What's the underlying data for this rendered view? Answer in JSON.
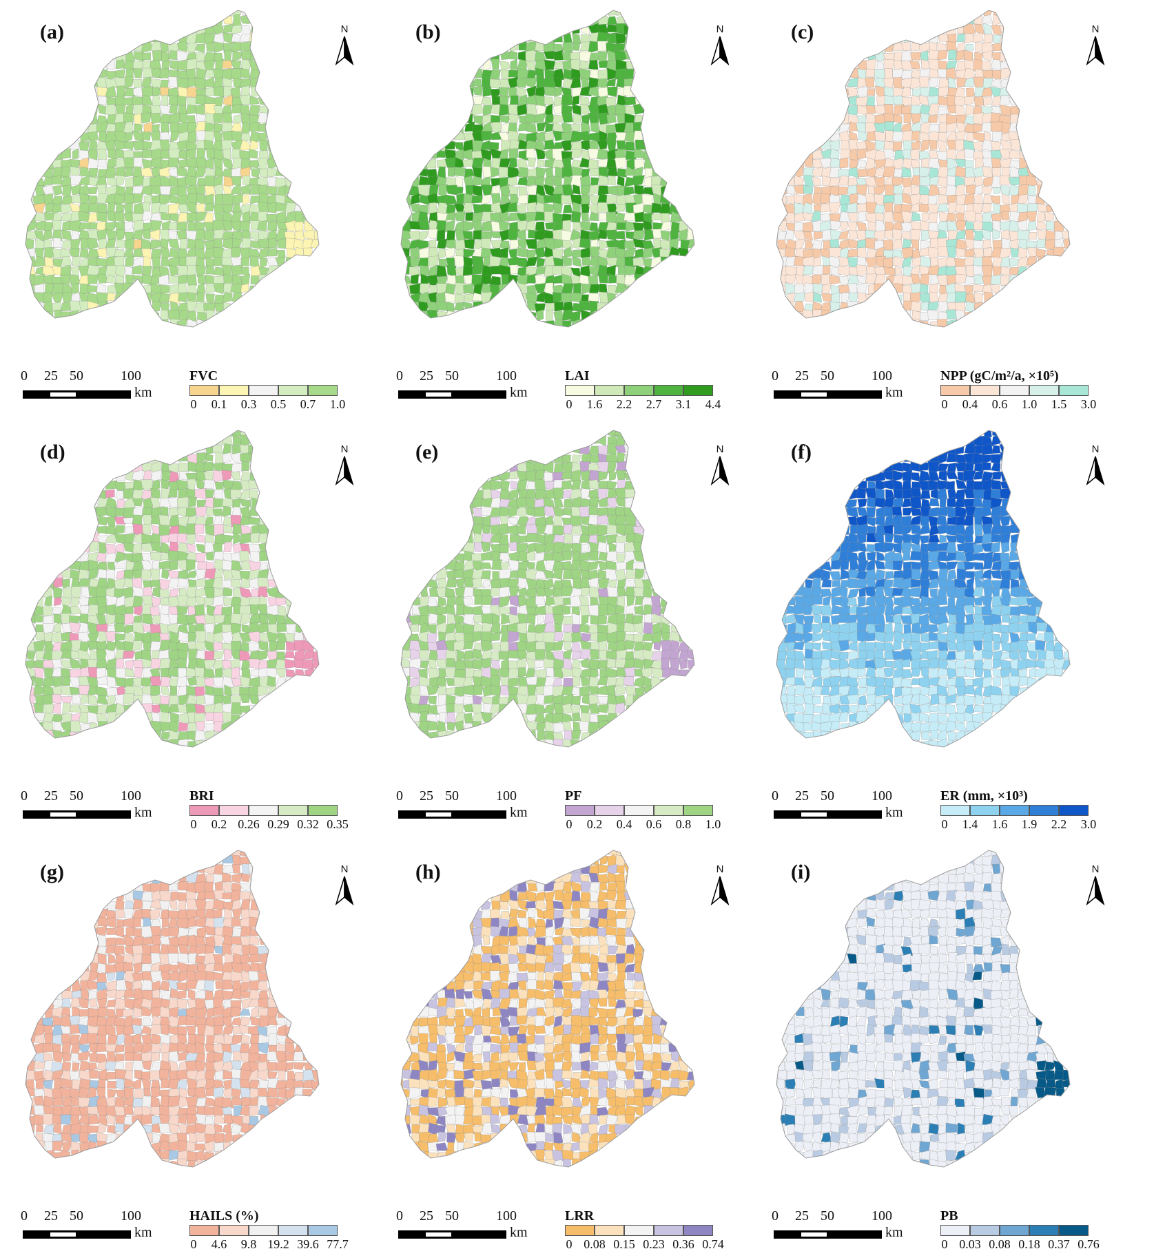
{
  "scale_bar": {
    "ticks": [
      "0",
      "25",
      "50",
      "100"
    ],
    "tick_values": [
      0,
      25,
      50,
      100
    ],
    "unit": "km"
  },
  "north_label": "N",
  "panels": [
    {
      "id": "a",
      "label": "(a)",
      "legend_title": "FVC",
      "breaks": [
        "0",
        "0.1",
        "0.3",
        "0.5",
        "0.7",
        "1.0"
      ],
      "colors": [
        "#f7d58f",
        "#fbf4b2",
        "#f3f3f3",
        "#d3ecc0",
        "#a6d98a"
      ],
      "fill_weights": [
        0.01,
        0.05,
        0.06,
        0.2,
        0.68
      ]
    },
    {
      "id": "b",
      "label": "(b)",
      "legend_title": "LAI",
      "breaks": [
        "0",
        "1.6",
        "2.2",
        "2.7",
        "3.1",
        "4.4"
      ],
      "colors": [
        "#f7fbe1",
        "#cfe9b8",
        "#8fd07a",
        "#4fb43f",
        "#2f9c1f"
      ],
      "fill_weights": [
        0.08,
        0.2,
        0.3,
        0.24,
        0.18
      ]
    },
    {
      "id": "c",
      "label": "(c)",
      "legend_title": "NPP (gC/m²/a, ×10⁵)",
      "breaks": [
        "0",
        "0.4",
        "0.6",
        "1.0",
        "1.5",
        "3.0"
      ],
      "colors": [
        "#f6c9a8",
        "#fbe5d6",
        "#f2f2f2",
        "#d7f1ea",
        "#a8e6d6"
      ],
      "fill_weights": [
        0.28,
        0.38,
        0.12,
        0.14,
        0.08
      ]
    },
    {
      "id": "d",
      "label": "(d)",
      "legend_title": "BRI",
      "breaks": [
        "0",
        "0.2",
        "0.26",
        "0.29",
        "0.32",
        "0.35"
      ],
      "colors": [
        "#ef99b8",
        "#f8d3e2",
        "#f3f3f3",
        "#d6ebc4",
        "#9fd485"
      ],
      "fill_weights": [
        0.04,
        0.12,
        0.14,
        0.28,
        0.42
      ]
    },
    {
      "id": "e",
      "label": "(e)",
      "legend_title": "PF",
      "breaks": [
        "0",
        "0.2",
        "0.4",
        "0.6",
        "0.8",
        "1.0"
      ],
      "colors": [
        "#c3a5d2",
        "#e6d3ea",
        "#f3f3f3",
        "#d6ebc4",
        "#9fd485"
      ],
      "fill_weights": [
        0.02,
        0.04,
        0.06,
        0.22,
        0.66
      ]
    },
    {
      "id": "f",
      "label": "(f)",
      "legend_title": "ER (mm, ×10³)",
      "breaks": [
        "0",
        "1.4",
        "1.6",
        "1.9",
        "2.2",
        "3.0"
      ],
      "colors": [
        "#c6ecf7",
        "#8ed2ef",
        "#5aa9e6",
        "#2f7fd9",
        "#0f56c8"
      ],
      "fill_weights": [
        0.3,
        0.28,
        0.2,
        0.14,
        0.08
      ]
    },
    {
      "id": "g",
      "label": "(g)",
      "legend_title": "HAILS (%)",
      "breaks": [
        "0",
        "4.6",
        "9.8",
        "19.2",
        "39.6",
        "77.7"
      ],
      "colors": [
        "#f2b39c",
        "#f8d8cb",
        "#f1f1f1",
        "#d3e2ee",
        "#a9c8e3"
      ],
      "fill_weights": [
        0.62,
        0.2,
        0.1,
        0.05,
        0.03
      ]
    },
    {
      "id": "h",
      "label": "(h)",
      "legend_title": "LRR",
      "breaks": [
        "0",
        "0.08",
        "0.15",
        "0.23",
        "0.36",
        "0.74"
      ],
      "colors": [
        "#f6bd6a",
        "#fbe2bd",
        "#f3f3f3",
        "#c8c3e1",
        "#8e86c2"
      ],
      "fill_weights": [
        0.46,
        0.18,
        0.12,
        0.14,
        0.1
      ]
    },
    {
      "id": "i",
      "label": "(i)",
      "legend_title": "PB",
      "breaks": [
        "0",
        "0.03",
        "0.08",
        "0.18",
        "0.37",
        "0.76"
      ],
      "colors": [
        "#eceff6",
        "#b9cbe2",
        "#6fa6d2",
        "#2c7fb4",
        "#075a87"
      ],
      "fill_weights": [
        0.78,
        0.12,
        0.06,
        0.03,
        0.01
      ]
    }
  ]
}
